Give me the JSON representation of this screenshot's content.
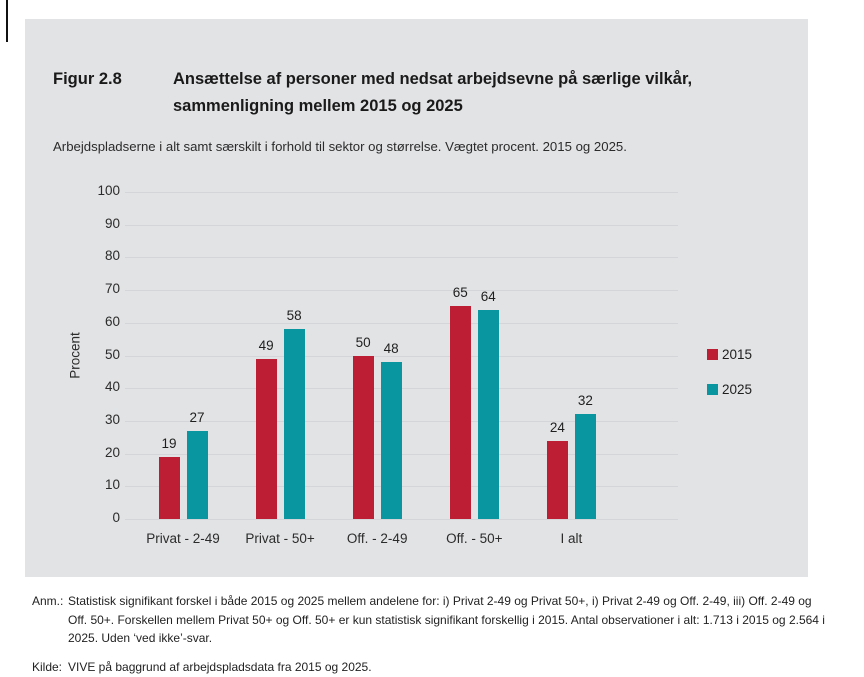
{
  "figure": {
    "label": "Figur 2.8",
    "title_lines": [
      "Ansættelse af personer med nedsat arbejdsevne på særlige vilkår,",
      "sammenligning mellem 2015 og 2025"
    ],
    "subtitle": "Arbejdspladserne i alt samt særskilt i forhold til sektor og størrelse. Vægtet procent. 2015 og 2025."
  },
  "chart_data": {
    "type": "bar",
    "categories": [
      "Privat - 2-49",
      "Privat - 50+",
      "Off. - 2-49",
      "Off. - 50+",
      "I alt"
    ],
    "series": [
      {
        "name": "2015",
        "color": "#be1e33",
        "values": [
          19,
          49,
          50,
          65,
          24
        ]
      },
      {
        "name": "2025",
        "color": "#0a96a0",
        "values": [
          27,
          58,
          48,
          64,
          32
        ]
      }
    ],
    "title": "",
    "xlabel": "",
    "ylabel": "Procent",
    "ylim": [
      0,
      100
    ],
    "ytick_step": 10,
    "yticks": [
      0,
      10,
      20,
      30,
      40,
      50,
      60,
      70,
      80,
      90,
      100
    ],
    "grid": true,
    "legend_position": "right",
    "bar_value_labels": true
  },
  "notes": {
    "anm_label": "Anm.:",
    "anm_text": "Statistisk signifikant forskel i både 2015 og 2025 mellem andelene for: i) Privat 2-49 og Privat 50+, i) Privat 2-49 og Off. 2-49, iii) Off. 2-49 og Off. 50+. Forskellen mellem Privat 50+ og Off. 50+ er kun statistisk signifikant forskellig i 2015. Antal observationer i alt: 1.713 i 2015 og 2.564 i 2025. Uden ‘ved ikke’-svar.",
    "kilde_label": "Kilde:",
    "kilde_text": "VIVE på baggrund af arbejdspladsdata fra 2015 og 2025."
  },
  "colors": {
    "panel_bg": "#e2e3e5",
    "gridline": "#d4d5d8",
    "series_2015": "#be1e33",
    "series_2025": "#0a96a0"
  }
}
